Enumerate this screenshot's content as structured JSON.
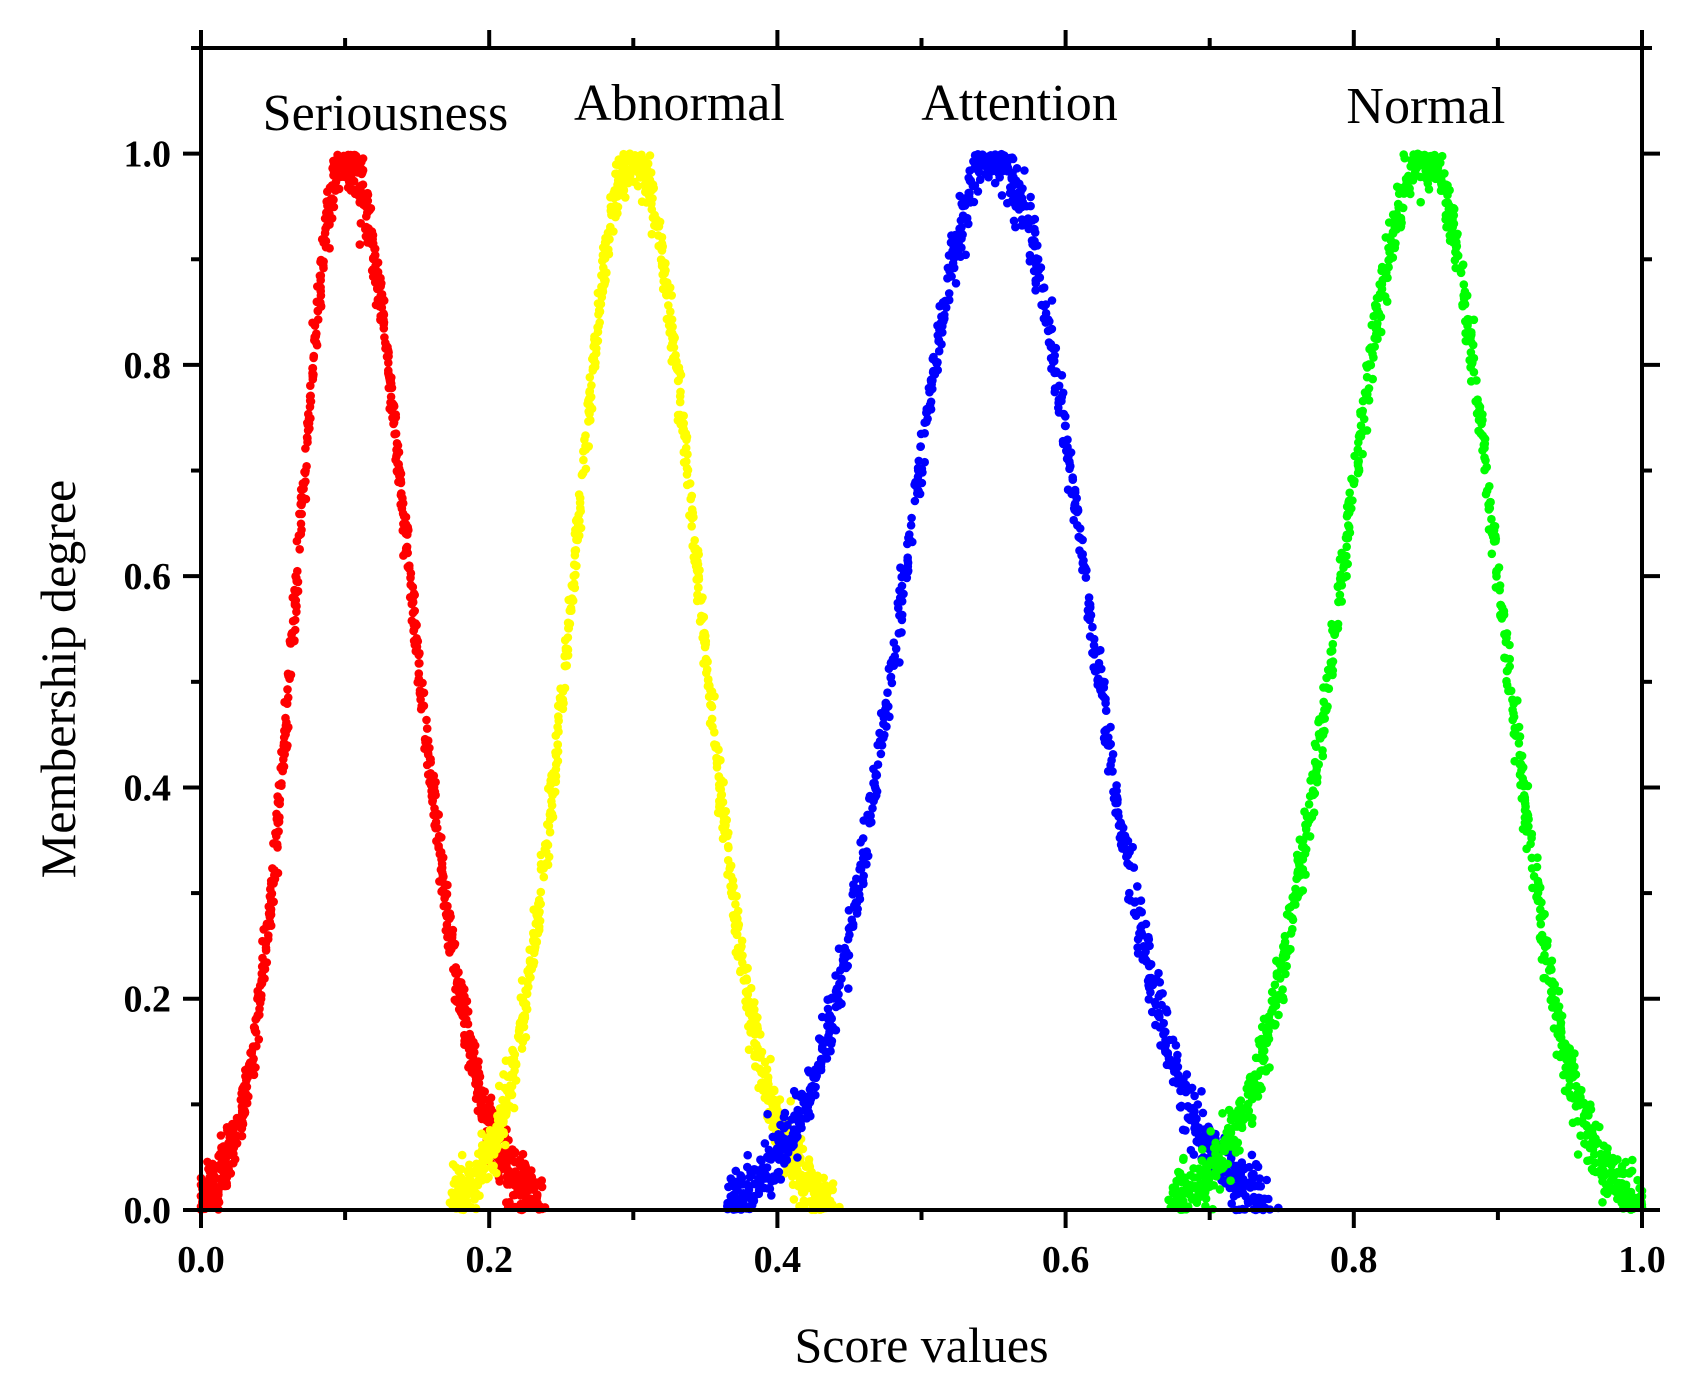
{
  "chart_data": {
    "type": "scatter",
    "xlabel": "Score values",
    "ylabel": "Membership degree",
    "xlim": [
      0.0,
      1.0
    ],
    "ylim": [
      0.0,
      1.1
    ],
    "x_ticks": [
      "0.0",
      "0.2",
      "0.4",
      "0.6",
      "0.8",
      "1.0"
    ],
    "y_ticks": [
      "0.0",
      "0.2",
      "0.4",
      "0.6",
      "0.8",
      "1.0"
    ],
    "grid": false,
    "legend": "none",
    "series": [
      {
        "name": "Seriousness",
        "color": "#ff0000",
        "center": 0.1,
        "peak": 1.0,
        "x_min": 0.0,
        "x_max": 0.235,
        "points": [
          [
            0.0,
            0.02
          ],
          [
            0.02,
            0.07
          ],
          [
            0.04,
            0.2
          ],
          [
            0.06,
            0.45
          ],
          [
            0.08,
            0.8
          ],
          [
            0.1,
            1.0
          ],
          [
            0.12,
            0.82
          ],
          [
            0.14,
            0.48
          ],
          [
            0.16,
            0.2
          ],
          [
            0.18,
            0.06
          ],
          [
            0.2,
            0.01
          ],
          [
            0.235,
            0.0
          ]
        ]
      },
      {
        "name": "Abnormal",
        "color": "#ffff00",
        "center": 0.3,
        "peak": 1.0,
        "x_min": 0.175,
        "x_max": 0.435,
        "points": [
          [
            0.175,
            0.0
          ],
          [
            0.2,
            0.02
          ],
          [
            0.22,
            0.08
          ],
          [
            0.24,
            0.22
          ],
          [
            0.26,
            0.48
          ],
          [
            0.28,
            0.82
          ],
          [
            0.3,
            1.0
          ],
          [
            0.32,
            0.82
          ],
          [
            0.34,
            0.48
          ],
          [
            0.36,
            0.2
          ],
          [
            0.38,
            0.06
          ],
          [
            0.4,
            0.01
          ],
          [
            0.435,
            0.0
          ]
        ]
      },
      {
        "name": "Attention",
        "color": "#0000ff",
        "center": 0.55,
        "peak": 1.0,
        "x_min": 0.365,
        "x_max": 0.74,
        "points": [
          [
            0.365,
            0.0
          ],
          [
            0.4,
            0.02
          ],
          [
            0.43,
            0.08
          ],
          [
            0.46,
            0.22
          ],
          [
            0.49,
            0.48
          ],
          [
            0.52,
            0.82
          ],
          [
            0.55,
            1.0
          ],
          [
            0.58,
            0.82
          ],
          [
            0.61,
            0.48
          ],
          [
            0.64,
            0.2
          ],
          [
            0.67,
            0.06
          ],
          [
            0.7,
            0.01
          ],
          [
            0.74,
            0.0
          ]
        ]
      },
      {
        "name": "Normal",
        "color": "#00ff00",
        "center": 0.85,
        "peak": 1.0,
        "x_min": 0.675,
        "x_max": 1.0,
        "points": [
          [
            0.675,
            0.0
          ],
          [
            0.7,
            0.02
          ],
          [
            0.73,
            0.08
          ],
          [
            0.76,
            0.22
          ],
          [
            0.79,
            0.48
          ],
          [
            0.82,
            0.82
          ],
          [
            0.85,
            1.0
          ],
          [
            0.88,
            0.82
          ],
          [
            0.91,
            0.48
          ],
          [
            0.94,
            0.2
          ],
          [
            0.97,
            0.06
          ],
          [
            1.0,
            0.02
          ]
        ]
      }
    ]
  }
}
